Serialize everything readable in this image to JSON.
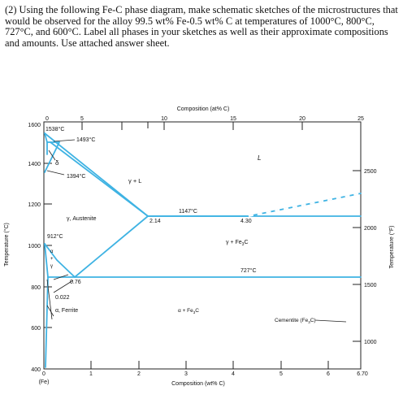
{
  "question": {
    "text": "(2) Using the following Fe-C phase diagram, make schematic sketches of the microstructures that would be observed for the alloy 99.5 wt% Fe-0.5 wt% C at temperatures of 1000°C, 800°C, 727°C, and 600°C. Label all phases in your sketches as well as their approximate compositions and amounts. Use attached answer sheet."
  },
  "diagram": {
    "top_axis_title": "Composition (at% C)",
    "bottom_axis_title": "Composition (wt% C)",
    "left_axis_title": "Temperature (°C)",
    "right_axis_title": "Temperature (°F)",
    "bottom_ticks": [
      "0",
      "1",
      "2",
      "3",
      "4",
      "5",
      "6",
      "6.70"
    ],
    "bottom_sublabel": "(Fe)",
    "top_ticks": [
      "0",
      "5",
      "10",
      "15",
      "20",
      "25"
    ],
    "left_ticks": [
      "1600",
      "1400",
      "1200",
      "1000",
      "800",
      "600",
      "400"
    ],
    "right_ticks": [
      "2500",
      "2000",
      "1500",
      "1000"
    ],
    "phase_labels": {
      "liquid": "L",
      "delta": "δ",
      "gamma_liquid": "γ + L",
      "austenite": "γ, Austenite",
      "gamma_cementite": "γ + Fe",
      "gamma_cementite_sub": "3",
      "gamma_cementite_end": "C",
      "alpha_gamma_a": "α",
      "alpha_gamma_plus": "+",
      "alpha_gamma_g": "γ",
      "ferrite": "α, Ferrite",
      "alpha_cementite": "α + Fe",
      "alpha_cementite_sub": "3",
      "alpha_cementite_end": "C",
      "cementite": "Cementite (Fe",
      "cementite_sub": "3",
      "cementite_end": "C)"
    },
    "temperature_labels": {
      "t1538": "1538°C",
      "t1493": "1493°C",
      "t1394": "1394°C",
      "t1147": "1147°C",
      "t912": "912°C",
      "t727": "727°C"
    },
    "composition_labels": {
      "c214": "2.14",
      "c430": "4.30",
      "c076": "0.76",
      "c0022": "0.022"
    },
    "colors": {
      "phase_line": "#3fb3e3",
      "axis": "#222222"
    }
  }
}
